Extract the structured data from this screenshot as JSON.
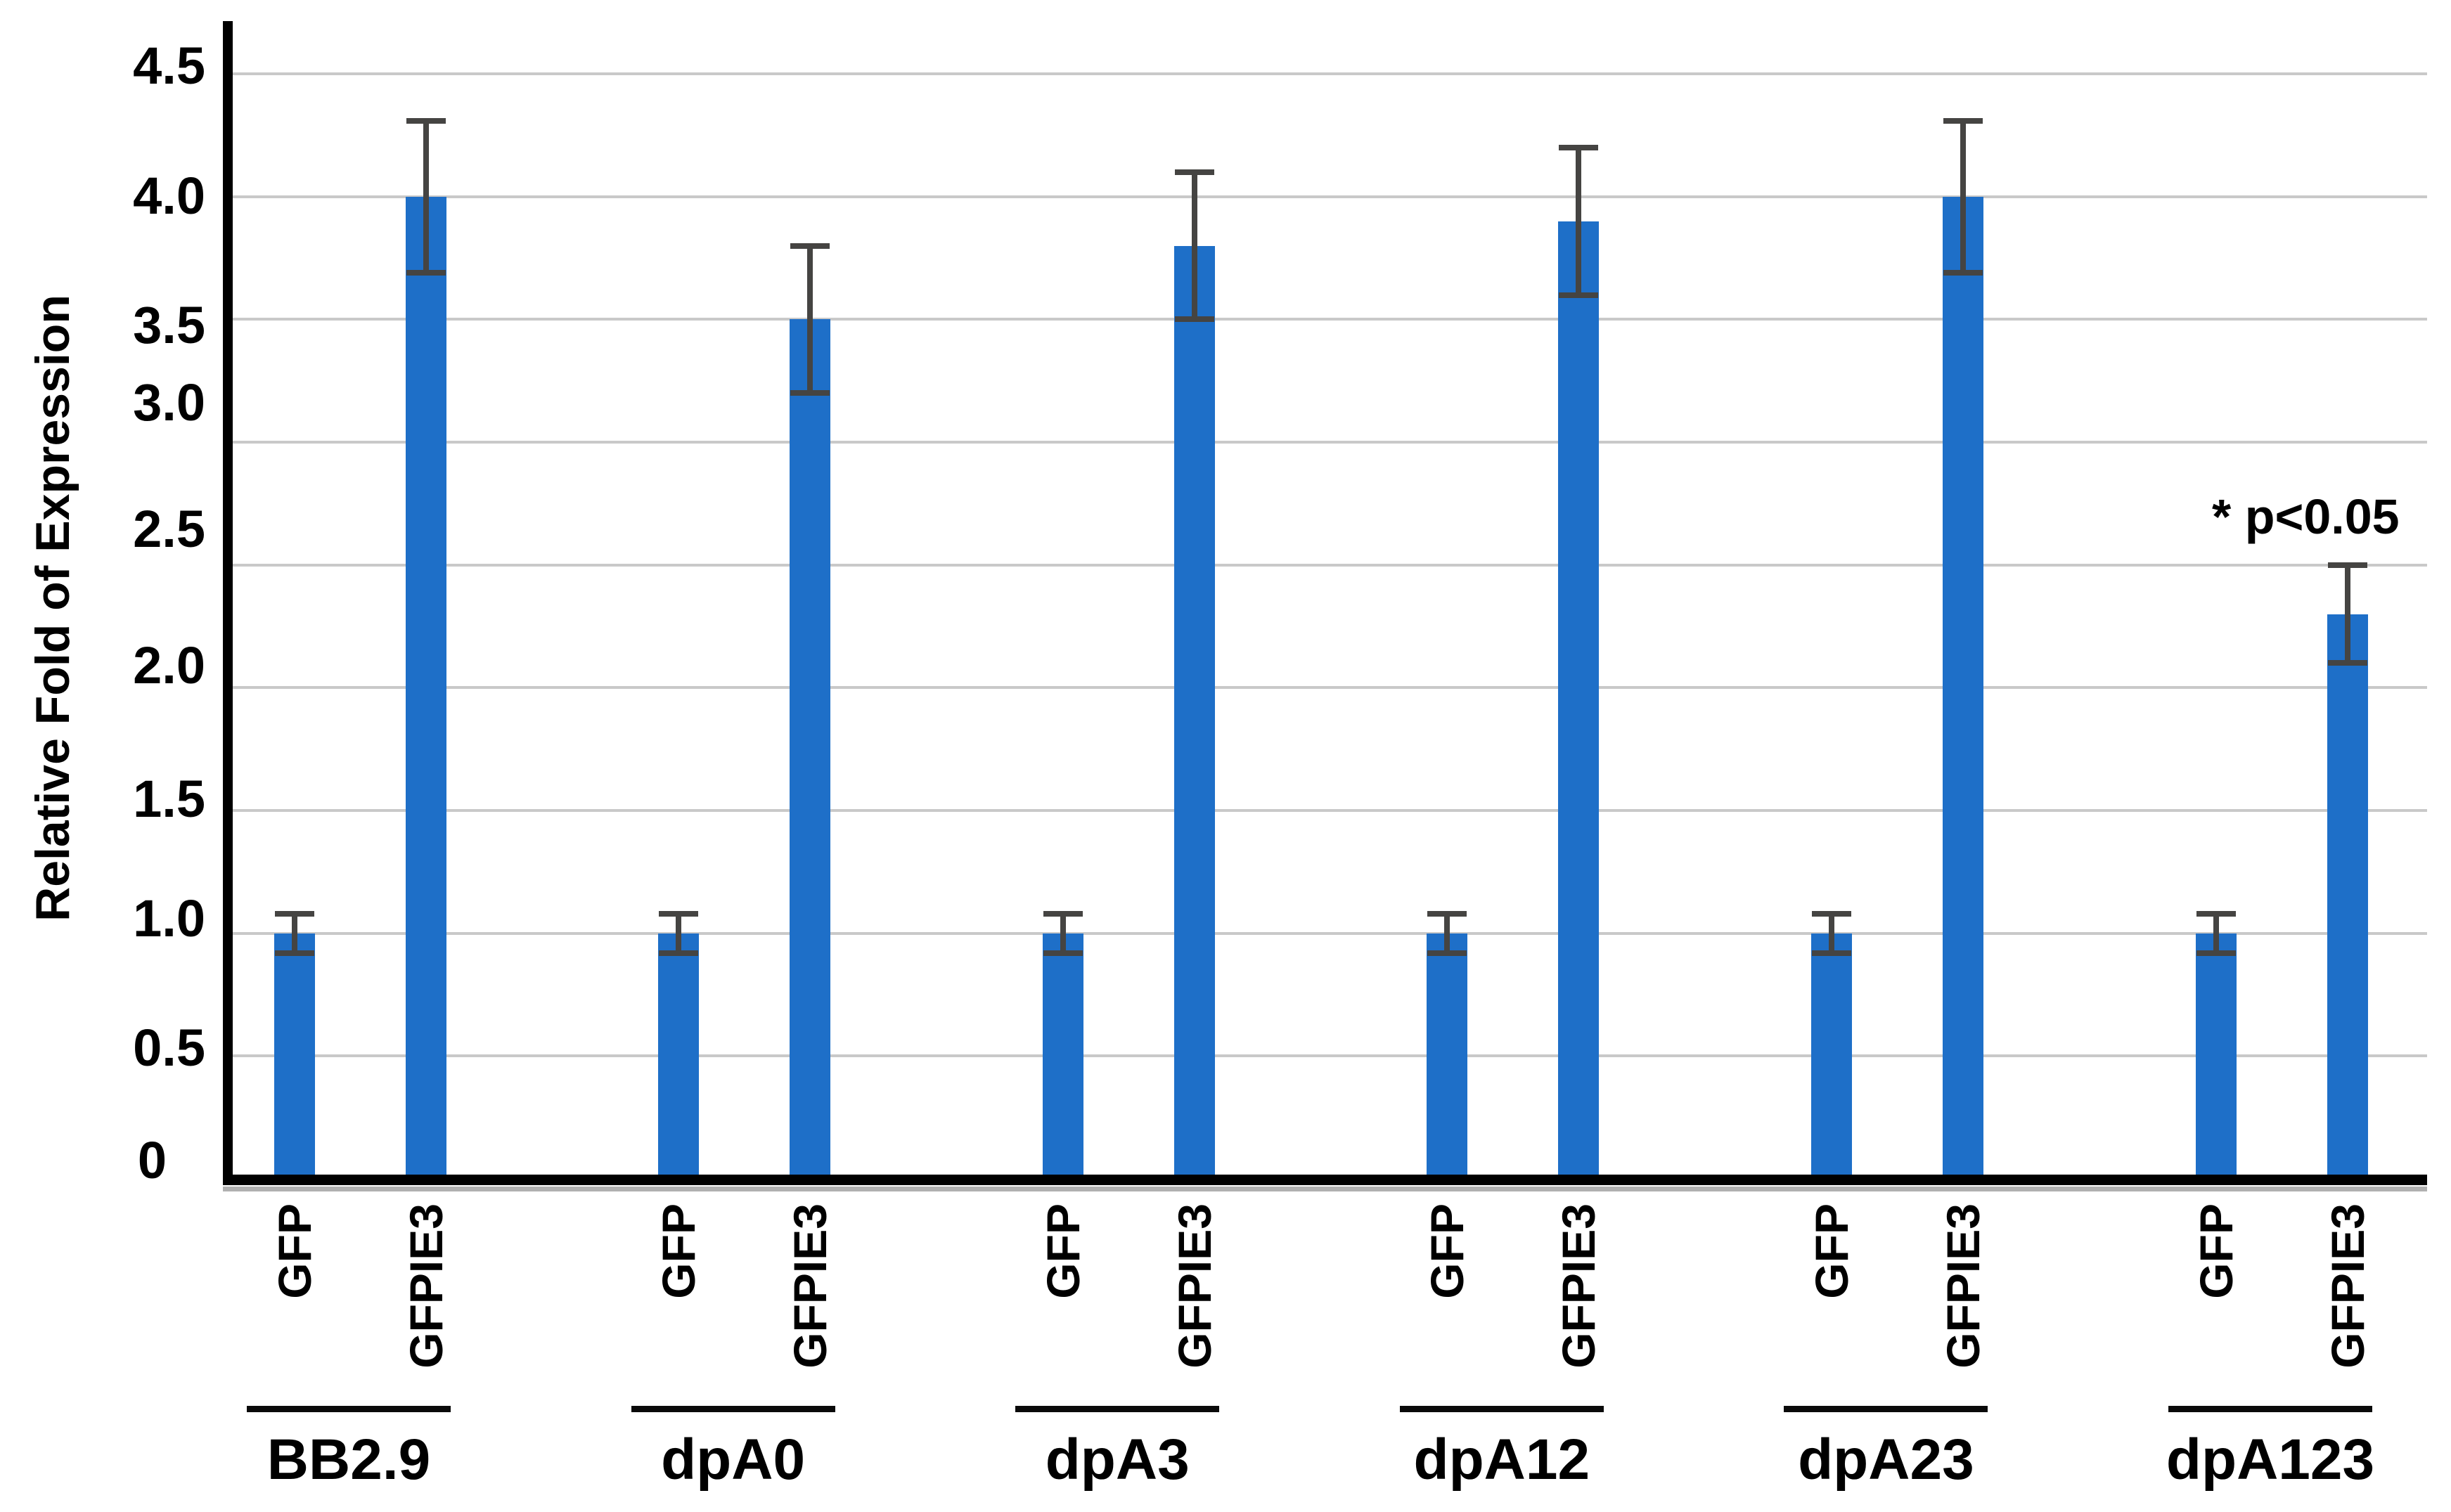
{
  "chart_data": {
    "type": "bar",
    "title": "",
    "ylabel": "Relative Fold of Expression",
    "xlabel": "",
    "ylim": [
      0,
      4.5
    ],
    "ytick_step": 0.5,
    "yticks": [
      "4.5",
      "4.0",
      "3.5",
      "3.0",
      "2.5",
      "2.0",
      "1.5",
      "1.0",
      "0.5",
      "0"
    ],
    "grid": true,
    "legend": false,
    "categories": [
      "BB2.9",
      "dpA0",
      "dpA3",
      "dpA12",
      "dpA23",
      "dpA123"
    ],
    "series": [
      {
        "name": "GFP",
        "values": [
          1.0,
          1.0,
          1.0,
          1.0,
          1.0,
          1.0
        ],
        "errors": [
          0.08,
          0.08,
          0.08,
          0.08,
          0.08,
          0.08
        ]
      },
      {
        "name": "GFPIE3",
        "values": [
          4.0,
          3.5,
          3.8,
          3.9,
          4.0,
          2.3
        ],
        "errors": [
          0.31,
          0.3,
          0.3,
          0.3,
          0.31,
          0.2
        ]
      }
    ],
    "bar_color": "#1e6fc8",
    "error_bar_color": "#454442",
    "gridline_color": "#c9c9c9",
    "axis_color": "#000000",
    "annotation": {
      "text": "* p<0.05",
      "near_category": "dpA123",
      "near_series": "GFPIE3"
    }
  }
}
